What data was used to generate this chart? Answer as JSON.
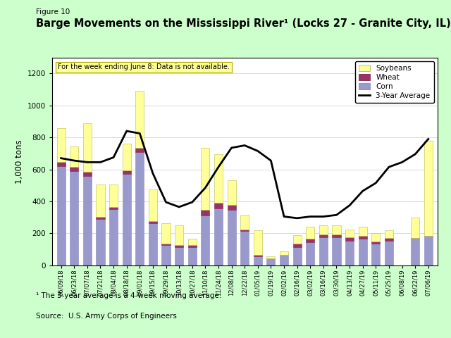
{
  "dates": [
    "06/09/18",
    "06/23/18",
    "07/07/18",
    "07/21/18",
    "08/04/18",
    "08/18/18",
    "09/01/18",
    "09/15/18",
    "09/29/18",
    "10/13/18",
    "10/27/18",
    "11/10/18",
    "11/24/18",
    "12/08/18",
    "12/22/18",
    "01/05/19",
    "01/19/19",
    "02/02/19",
    "02/16/19",
    "03/02/19",
    "03/16/19",
    "03/30/19",
    "04/13/19",
    "04/27/19",
    "05/11/19",
    "05/25/19",
    "06/08/19",
    "06/22/19",
    "07/06/19"
  ],
  "corn": [
    620,
    590,
    560,
    290,
    350,
    570,
    710,
    265,
    125,
    115,
    115,
    310,
    355,
    345,
    215,
    55,
    45,
    65,
    115,
    145,
    175,
    175,
    155,
    165,
    135,
    155,
    0,
    170,
    185
  ],
  "wheat": [
    25,
    25,
    25,
    15,
    15,
    25,
    25,
    10,
    10,
    10,
    10,
    35,
    35,
    35,
    10,
    10,
    0,
    0,
    20,
    20,
    20,
    20,
    20,
    20,
    15,
    15,
    0,
    0,
    0
  ],
  "soybeans": [
    215,
    130,
    305,
    200,
    140,
    165,
    355,
    200,
    130,
    125,
    40,
    390,
    305,
    150,
    90,
    155,
    10,
    20,
    55,
    75,
    55,
    55,
    50,
    55,
    50,
    50,
    0,
    130,
    595
  ],
  "avg_line": [
    670,
    655,
    645,
    645,
    675,
    840,
    825,
    575,
    395,
    365,
    395,
    485,
    615,
    735,
    750,
    715,
    655,
    305,
    295,
    305,
    305,
    315,
    375,
    465,
    515,
    615,
    645,
    695,
    790
  ],
  "colors": {
    "corn": "#9999CC",
    "wheat": "#993366",
    "soybeans": "#FFFF99",
    "avg_line": "#000000",
    "background": "#CCFFCC",
    "plot_bg": "#FFFFFF",
    "annotation_bg": "#FFFF99"
  },
  "title": "Barge Movements on the Mississippi River¹ (Locks 27 - Granite City, IL)",
  "figure_label": "Figure 10",
  "ylabel": "1,000 tons",
  "ylim": [
    0,
    1300
  ],
  "yticks": [
    0,
    200,
    400,
    600,
    800,
    1000,
    1200
  ],
  "annotation_text": "For the week ending June 8: Data is not available.",
  "footnote1": "¹ The 3-year average is a 4-week moving average.",
  "footnote2": "Source:  U.S. Army Corps of Engineers",
  "legend_labels": [
    "Soybeans",
    "Wheat",
    "Corn",
    "3-Year Average"
  ]
}
